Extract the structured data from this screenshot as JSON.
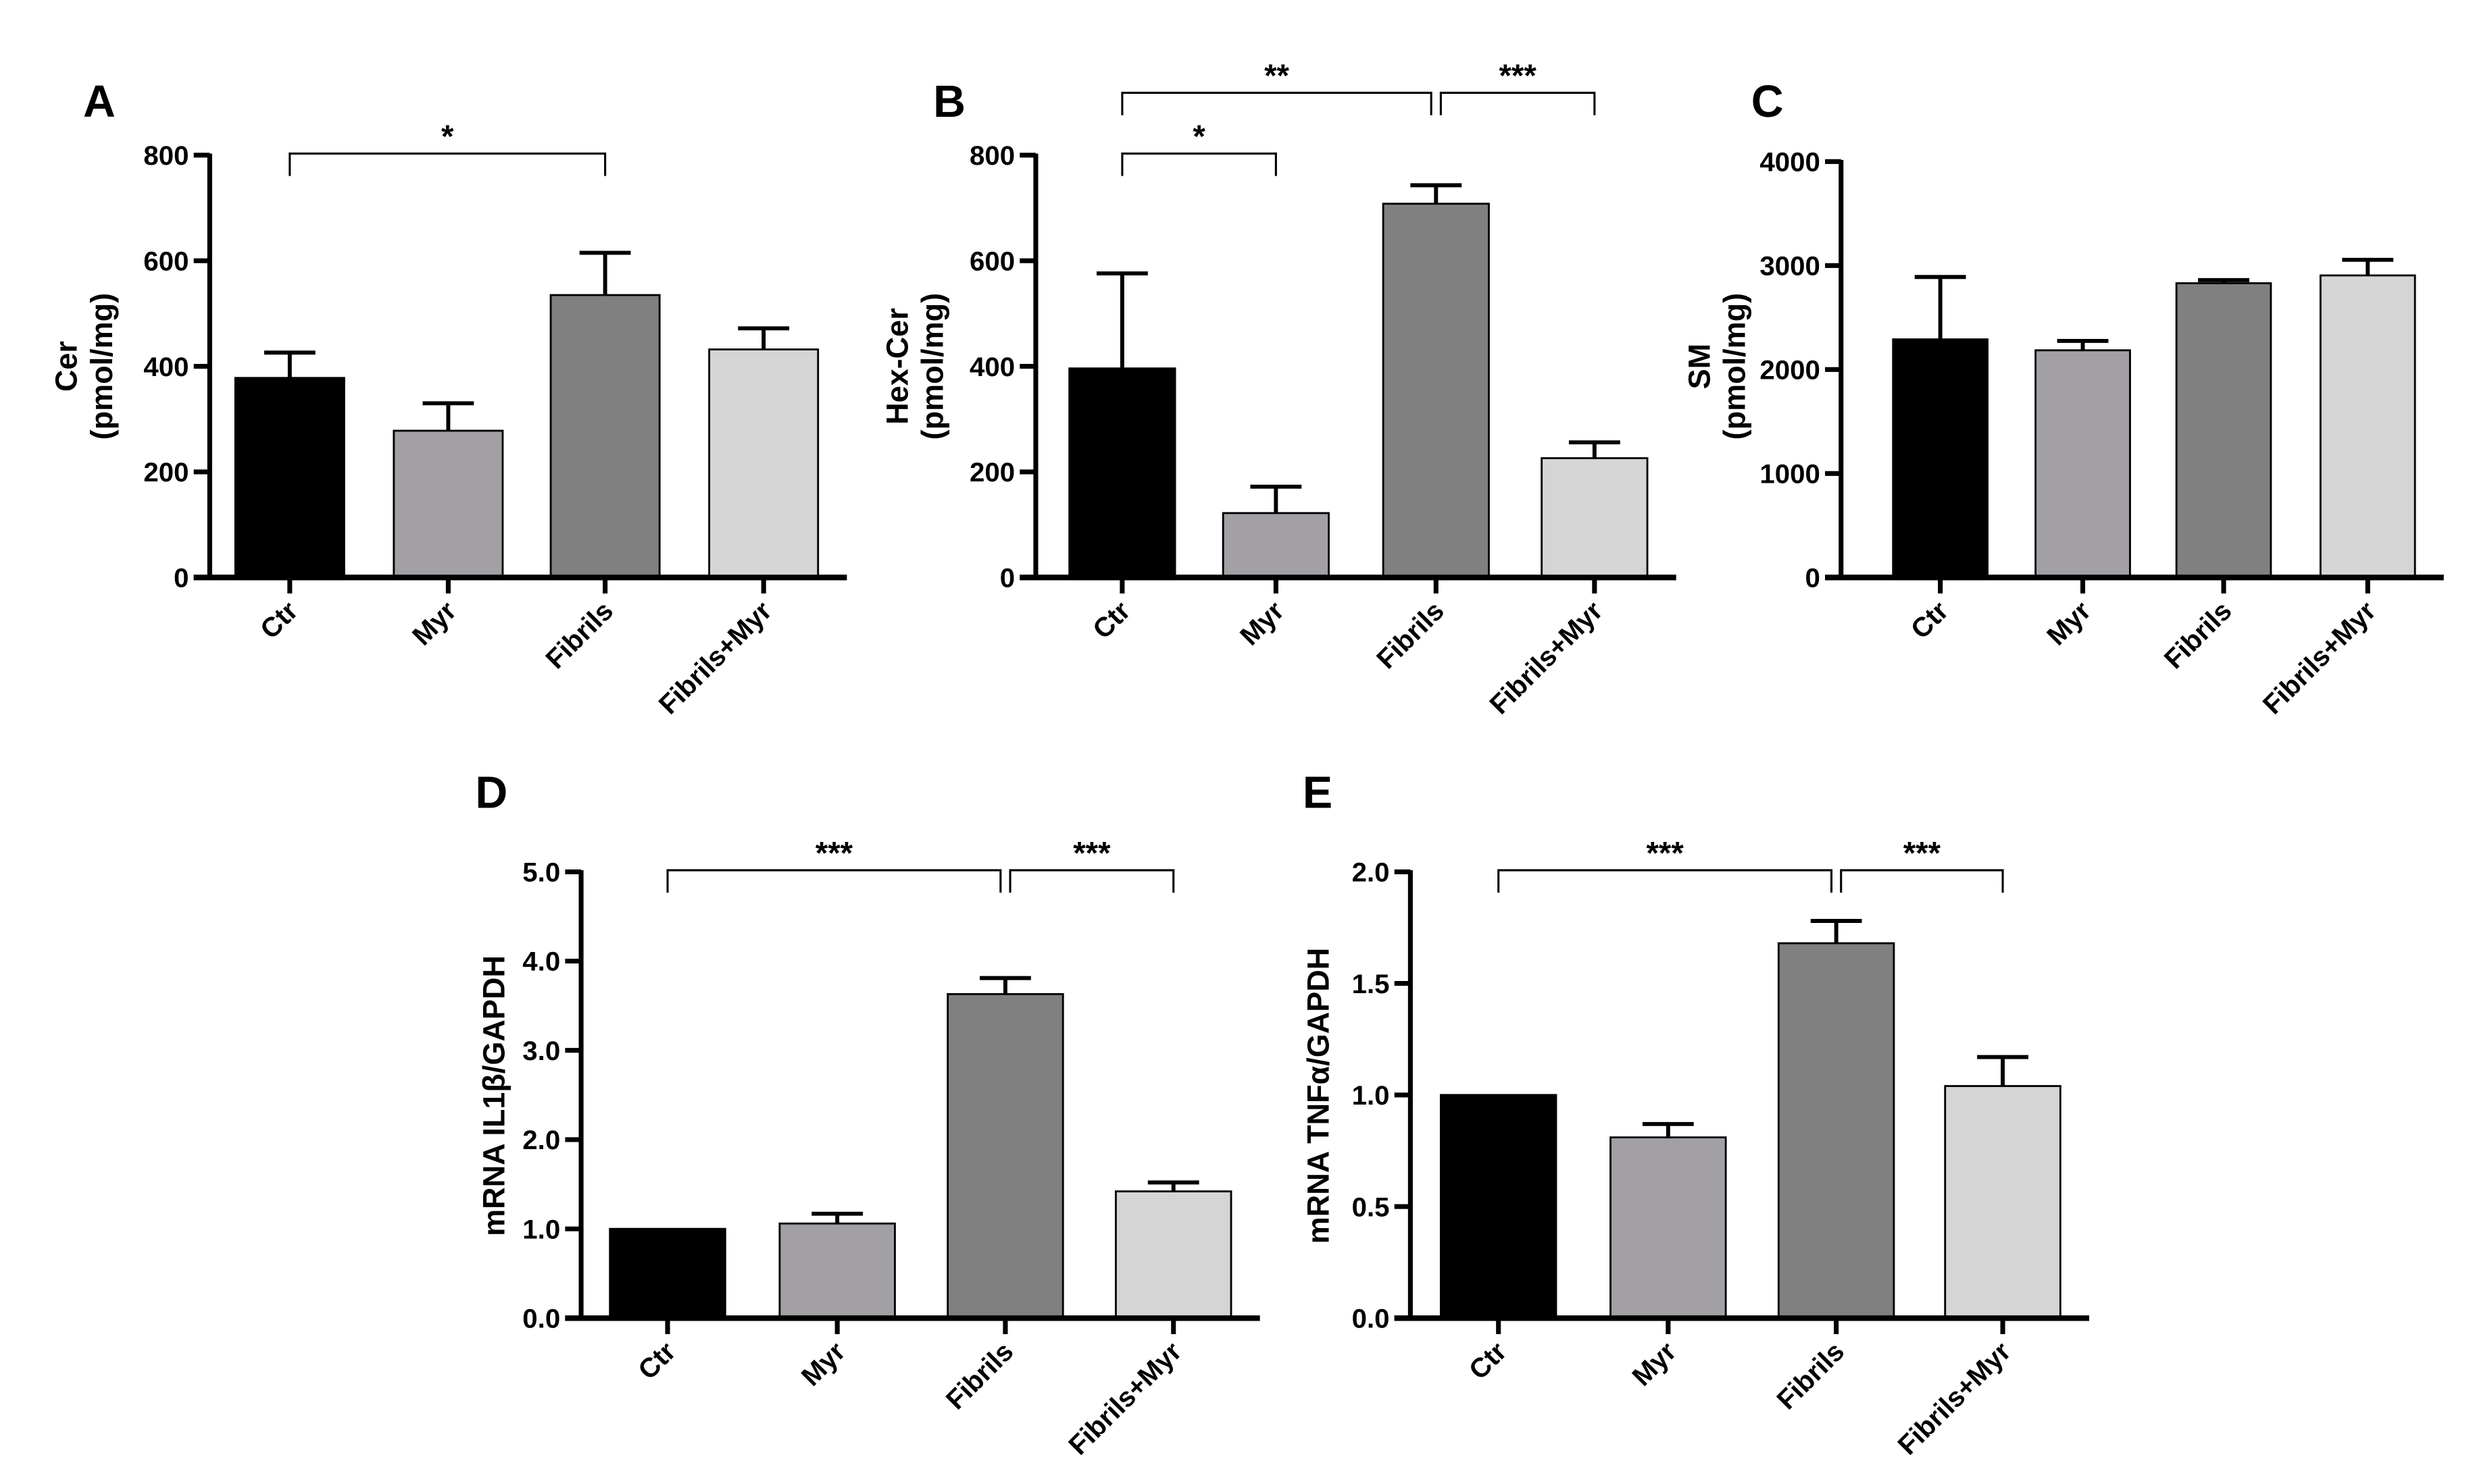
{
  "figure": {
    "category_labels": [
      "Ctr",
      "Myr",
      "Fibrils",
      "Fibrils+Myr"
    ],
    "bar_colors": [
      "#000000",
      "#a2a0a5",
      "#808080",
      "#d5d5d5"
    ]
  },
  "chart_data": [
    {
      "panel": "A",
      "type": "bar",
      "ylabel": "Cer",
      "ylabel2": "(pmol/mg)",
      "categories": [
        "Ctr",
        "Myr",
        "Fibrils",
        "Fibrils+Myr"
      ],
      "values": [
        378,
        278,
        535,
        432
      ],
      "errors": [
        48,
        52,
        80,
        40
      ],
      "ylim": [
        0,
        800
      ],
      "yticks": [
        0,
        200,
        400,
        600,
        800
      ],
      "ytick_labels": [
        "0",
        "200",
        "400",
        "600",
        "800"
      ],
      "significance": [
        {
          "from": 0,
          "to": 2,
          "level": 1,
          "label": "*"
        }
      ]
    },
    {
      "panel": "B",
      "type": "bar",
      "ylabel": "Hex-Cer",
      "ylabel2": "(pmol/mg)",
      "categories": [
        "Ctr",
        "Myr",
        "Fibrils",
        "Fibrils+Myr"
      ],
      "values": [
        396,
        122,
        708,
        226
      ],
      "errors": [
        180,
        50,
        35,
        30
      ],
      "ylim": [
        0,
        800
      ],
      "yticks": [
        0,
        200,
        400,
        600,
        800
      ],
      "ytick_labels": [
        "0",
        "200",
        "400",
        "600",
        "800"
      ],
      "significance": [
        {
          "from": 0,
          "to": 1,
          "level": 1,
          "label": "*"
        },
        {
          "from": 0,
          "to": 2,
          "level": 2,
          "label": "**"
        },
        {
          "from": 2,
          "to": 3,
          "level": 2,
          "label": "***"
        }
      ]
    },
    {
      "panel": "C",
      "type": "bar",
      "ylabel": "SM",
      "ylabel2": "(pmol/mg)",
      "categories": [
        "Ctr",
        "Myr",
        "Fibrils",
        "Fibrils+Myr"
      ],
      "values": [
        2290,
        2185,
        2830,
        2905
      ],
      "errors": [
        600,
        90,
        30,
        150
      ],
      "ylim": [
        0,
        4000
      ],
      "yticks": [
        0,
        1000,
        2000,
        3000,
        4000
      ],
      "ytick_labels": [
        "0",
        "1000",
        "2000",
        "3000",
        "4000"
      ],
      "significance": []
    },
    {
      "panel": "D",
      "type": "bar",
      "ylabel": "mRNA IL1β/GAPDH",
      "ylabel2": "",
      "categories": [
        "Ctr",
        "Myr",
        "Fibrils",
        "Fibrils+Myr"
      ],
      "values": [
        1.0,
        1.06,
        3.63,
        1.42
      ],
      "errors": [
        0,
        0.11,
        0.18,
        0.1
      ],
      "ylim": [
        0,
        5
      ],
      "yticks": [
        0,
        1,
        2,
        3,
        4,
        5
      ],
      "ytick_labels": [
        "0.0",
        "1.0",
        "2.0",
        "3.0",
        "4.0",
        "5.0"
      ],
      "significance": [
        {
          "from": 0,
          "to": 2,
          "level": 1,
          "label": "***"
        },
        {
          "from": 2,
          "to": 3,
          "level": 1,
          "label": "***"
        }
      ]
    },
    {
      "panel": "E",
      "type": "bar",
      "ylabel": "mRNA TNFα/GAPDH",
      "ylabel2": "",
      "categories": [
        "Ctr",
        "Myr",
        "Fibrils",
        "Fibrils+Myr"
      ],
      "values": [
        1.0,
        0.81,
        1.68,
        1.04
      ],
      "errors": [
        0,
        0.06,
        0.1,
        0.13
      ],
      "ylim": [
        0,
        2
      ],
      "yticks": [
        0,
        0.5,
        1,
        1.5,
        2
      ],
      "ytick_labels": [
        "0.0",
        "0.5",
        "1.0",
        "1.5",
        "2.0"
      ],
      "significance": [
        {
          "from": 0,
          "to": 2,
          "level": 1,
          "label": "***"
        },
        {
          "from": 2,
          "to": 3,
          "level": 1,
          "label": "***"
        }
      ]
    }
  ]
}
